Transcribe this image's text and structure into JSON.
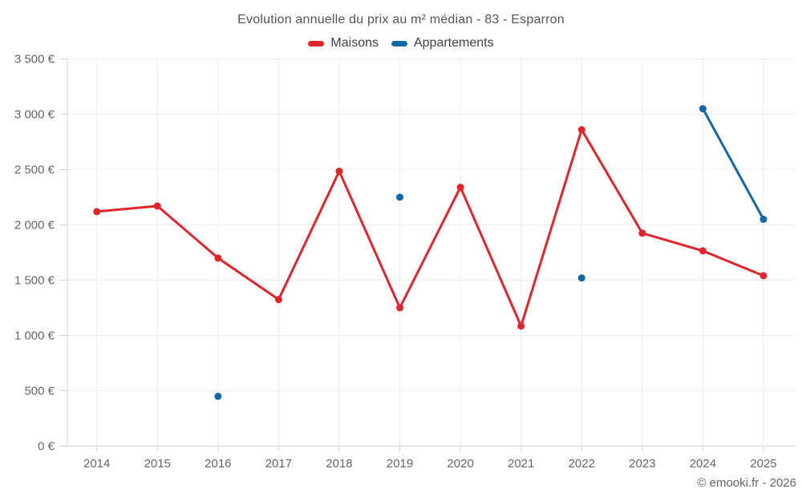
{
  "title": "Evolution annuelle du prix au m² médian - 83 - Esparron",
  "footer": "© emooki.fr - 2026",
  "colors": {
    "maisons": "#e0262c",
    "appartements": "#1268a5",
    "gridline": "#ececec",
    "axis": "#d5d5d5",
    "tick_text": "#666666",
    "title_text": "#555555",
    "background": "#ffffff"
  },
  "chart_data": {
    "type": "line",
    "title": "Evolution annuelle du prix au m² médian - 83 - Esparron",
    "x": [
      2014,
      2015,
      2016,
      2017,
      2018,
      2019,
      2020,
      2021,
      2022,
      2023,
      2024,
      2025
    ],
    "series": [
      {
        "name": "Maisons",
        "color": "#e0262c",
        "values": [
          2120,
          2170,
          1700,
          1325,
          2485,
          1250,
          2340,
          1085,
          2860,
          1925,
          1765,
          1540
        ]
      },
      {
        "name": "Appartements",
        "color": "#1268a5",
        "values": [
          null,
          null,
          450,
          null,
          null,
          2250,
          null,
          null,
          1520,
          null,
          3050,
          2050
        ]
      }
    ],
    "xlabel": "",
    "ylabel": "",
    "ylim": [
      0,
      3500
    ],
    "ytick_step": 500,
    "yticklabel_suffix": " €",
    "grid": true,
    "legend_position": "top"
  }
}
